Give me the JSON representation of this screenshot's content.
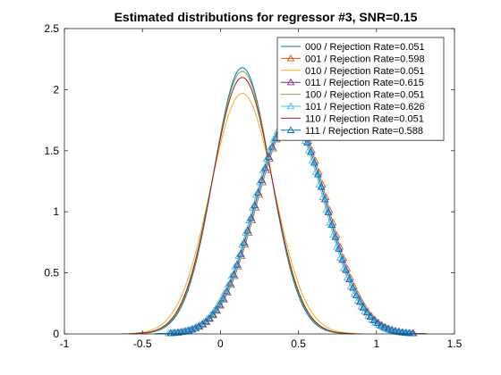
{
  "chart_data": {
    "type": "line",
    "title": "Estimated distributions for regressor #3,  SNR=0.15",
    "xlabel": "",
    "ylabel": "",
    "xlim": [
      -1,
      1.5
    ],
    "ylim": [
      0,
      2.5
    ],
    "xticks": [
      "-1",
      "-0.5",
      "0",
      "0.5",
      "1",
      "1.5"
    ],
    "yticks": [
      "0",
      "0.5",
      "1",
      "1.5",
      "2",
      "2.5"
    ],
    "grid": false,
    "legend_position": "top-right",
    "series": [
      {
        "name": "000 / Rejection Rate=0.051",
        "color": "#0072BD",
        "marker": "none",
        "mean": 0.14,
        "sd": 0.183,
        "peak": 2.18
      },
      {
        "name": "001 / Rejection Rate=0.598",
        "color": "#D95319",
        "marker": "triangle",
        "mean": 0.46,
        "sd": 0.228,
        "peak": 1.75
      },
      {
        "name": "010 / Rejection Rate=0.051",
        "color": "#EDB120",
        "marker": "none",
        "mean": 0.14,
        "sd": 0.203,
        "peak": 1.97
      },
      {
        "name": "011 / Rejection Rate=0.615",
        "color": "#7E2F8E",
        "marker": "triangle",
        "mean": 0.45,
        "sd": 0.228,
        "peak": 1.75
      },
      {
        "name": "100 / Rejection Rate=0.051",
        "color": "#77AC30",
        "marker": "none",
        "mean": 0.14,
        "sd": 0.186,
        "peak": 2.15
      },
      {
        "name": "101 / Rejection Rate=0.626",
        "color": "#4DBEEE",
        "marker": "triangle",
        "mean": 0.44,
        "sd": 0.228,
        "peak": 1.75
      },
      {
        "name": "110 / Rejection Rate=0.051",
        "color": "#A2142F",
        "marker": "none",
        "mean": 0.14,
        "sd": 0.19,
        "peak": 2.1
      },
      {
        "name": "111 / Rejection Rate=0.588",
        "color": "#0072BD",
        "marker": "triangle",
        "mean": 0.45,
        "sd": 0.228,
        "peak": 1.75
      }
    ]
  }
}
